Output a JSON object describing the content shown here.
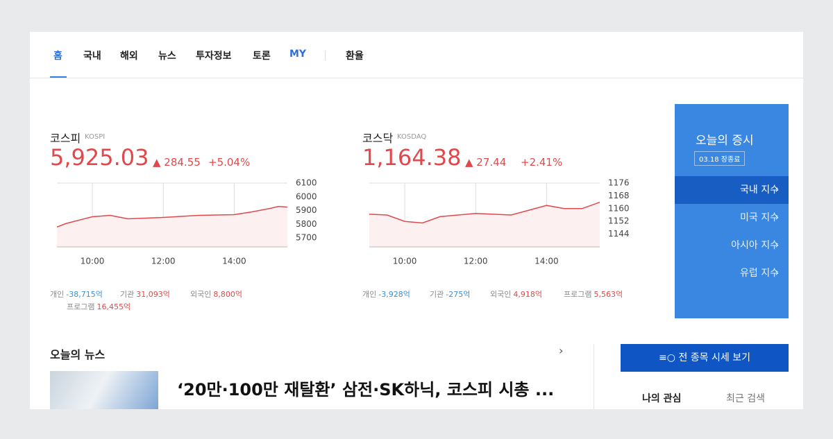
{
  "nav": {
    "tabs": [
      "홈",
      "국내",
      "해외",
      "뉴스",
      "투자정보",
      "토론",
      "MY"
    ],
    "extra": "환율"
  },
  "chart_data": [
    {
      "type": "line",
      "title": "코스피",
      "subtitle": "KOSPI",
      "index_value": "5,925.03",
      "change": "▲ 284.55",
      "change_pct": "+5.04%",
      "color": "#e0484c",
      "x": [
        9,
        9.25,
        10,
        10.5,
        11,
        12,
        13,
        14,
        14.5,
        15,
        15.25,
        15.5
      ],
      "values": [
        5780,
        5805,
        5855,
        5865,
        5840,
        5850,
        5865,
        5870,
        5890,
        5915,
        5930,
        5925
      ],
      "xlim": [
        9,
        15.5
      ],
      "xticks": [
        {
          "value": 10,
          "label": "10:00"
        },
        {
          "value": 12,
          "label": "12:00"
        },
        {
          "value": 14,
          "label": "14:00"
        }
      ],
      "ylim": [
        5635,
        6100
      ],
      "yticks": [
        6100,
        6000,
        5900,
        5800,
        5700
      ],
      "grid": true,
      "investors": [
        {
          "label": "개인",
          "value": "-38,715억",
          "color": "#3a8fd9"
        },
        {
          "label": "기관",
          "value": "31,093억",
          "color": "#e0484c"
        },
        {
          "label": "외국인",
          "value": "8,800억",
          "color": "#e0484c"
        },
        {
          "label": "프로그램",
          "value": "16,455억",
          "color": "#e0484c"
        }
      ]
    },
    {
      "type": "line",
      "title": "코스닥",
      "subtitle": "KOSDAQ",
      "index_value": "1,164.38",
      "change": "▲ 27.44",
      "change_pct": "+2.41%",
      "color": "#e0484c",
      "x": [
        9,
        9.5,
        10,
        10.5,
        11,
        12,
        13,
        13.5,
        14,
        14.5,
        15,
        15.5
      ],
      "values": [
        1156.5,
        1156,
        1152,
        1151,
        1155,
        1157,
        1156,
        1159,
        1162,
        1160,
        1160,
        1164
      ],
      "xlim": [
        9,
        15.5
      ],
      "xticks": [
        {
          "value": 10,
          "label": "10:00"
        },
        {
          "value": 12,
          "label": "12:00"
        },
        {
          "value": 14,
          "label": "14:00"
        }
      ],
      "ylim": [
        1136,
        1176
      ],
      "yticks": [
        1176,
        1168,
        1160,
        1152,
        1144
      ],
      "grid": true,
      "investors": [
        {
          "label": "개인",
          "value": "-3,928억",
          "color": "#3a8fd9"
        },
        {
          "label": "기관",
          "value": "-275억",
          "color": "#3a8fd9"
        },
        {
          "label": "외국인",
          "value": "4,918억",
          "color": "#e0484c"
        },
        {
          "label": "프로그램",
          "value": "5,563억",
          "color": "#e0484c"
        }
      ]
    }
  ],
  "market": {
    "title": "오늘의 증시",
    "badge": "03.18 장종료",
    "items": [
      "국내 지수",
      "미국 지수",
      "아시아 지수",
      "유럽 지수"
    ]
  },
  "news": {
    "title": "오늘의 뉴스",
    "headline": "‘20만·100만 재탈환’ 삼전·SK하닉, 코스피 시총 ..."
  },
  "side": {
    "button": "전 종목 시세 보기",
    "tabs": [
      "나의 관심",
      "최근 검색"
    ]
  }
}
